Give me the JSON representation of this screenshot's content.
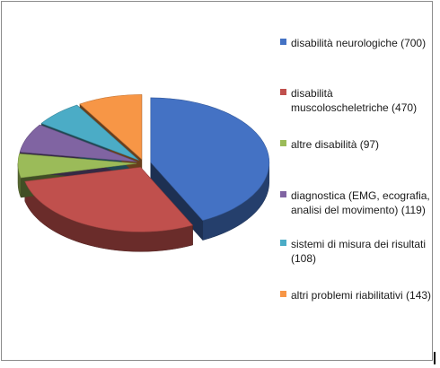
{
  "chart_data": {
    "type": "pie",
    "title": "",
    "legend_position": "right",
    "slices": [
      {
        "label": "disabilità neurologiche (700)",
        "value": 700,
        "color": "#4472c4"
      },
      {
        "label": "disabilità muscoloscheletriche (470)",
        "value": 470,
        "color": "#c0504d"
      },
      {
        "label": "altre disabilità (97)",
        "value": 97,
        "color": "#9bbb59"
      },
      {
        "label": "diagnostica (EMG, ecografia, analisi del movimento) (119)",
        "value": 119,
        "color": "#8064a2"
      },
      {
        "label": "sistemi di misura dei risultati (108)",
        "value": 108,
        "color": "#4bacc6"
      },
      {
        "label": "altri problemi riabilitativi (143)",
        "value": 143,
        "color": "#f79646"
      }
    ]
  }
}
